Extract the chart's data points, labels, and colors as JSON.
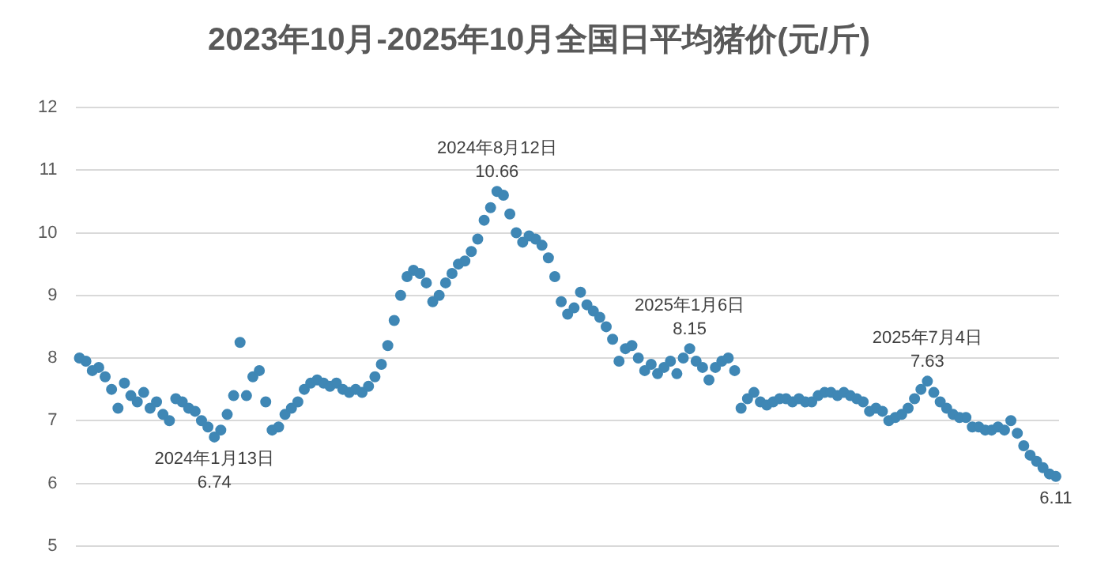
{
  "chart_data": {
    "type": "scatter",
    "title": "2023年10月-2025年10月全国日平均猪价(元/斤)",
    "categories": [
      null,
      null,
      null,
      null,
      null,
      null,
      null,
      null,
      null,
      null,
      null,
      null,
      null,
      null,
      null,
      null,
      null,
      null,
      null,
      null,
      null,
      null,
      null,
      null,
      null,
      null,
      null,
      null,
      null,
      null,
      null,
      null,
      null,
      null,
      null,
      null,
      null,
      null,
      null,
      null,
      null,
      null,
      null,
      null,
      null,
      null,
      null,
      null,
      null,
      null,
      null,
      null,
      null,
      null,
      null,
      null,
      null,
      null,
      null,
      null,
      null,
      null,
      null,
      null,
      null,
      null,
      null,
      null,
      null,
      null,
      null,
      null,
      null,
      null,
      null,
      null,
      null,
      null,
      null,
      null,
      null,
      null,
      null,
      null,
      null,
      null,
      null,
      null,
      null,
      null,
      null,
      null,
      null,
      null,
      null,
      null,
      null,
      null,
      null,
      null,
      null,
      null,
      null,
      null,
      null,
      null,
      null,
      null,
      null,
      null,
      null,
      null,
      null,
      null,
      null,
      null,
      null,
      null,
      null,
      null,
      null,
      null,
      null,
      null,
      null,
      null,
      null,
      null,
      null,
      null,
      null,
      null,
      null,
      null,
      null,
      null,
      null,
      null,
      null,
      null,
      null,
      null,
      null,
      null,
      null,
      null,
      null,
      null,
      null,
      null,
      null,
      null,
      null
    ],
    "values": [
      8.0,
      7.95,
      7.8,
      7.85,
      7.7,
      7.5,
      7.2,
      7.6,
      7.4,
      7.3,
      7.45,
      7.2,
      7.3,
      7.1,
      7.0,
      7.35,
      7.3,
      7.2,
      7.15,
      7.0,
      6.9,
      6.74,
      6.85,
      7.1,
      7.4,
      8.25,
      7.4,
      7.7,
      7.8,
      7.3,
      6.85,
      6.9,
      7.1,
      7.2,
      7.3,
      7.5,
      7.6,
      7.65,
      7.6,
      7.55,
      7.6,
      7.5,
      7.45,
      7.5,
      7.45,
      7.55,
      7.7,
      7.9,
      8.2,
      8.6,
      9.0,
      9.3,
      9.4,
      9.35,
      9.2,
      8.9,
      9.0,
      9.2,
      9.35,
      9.5,
      9.55,
      9.7,
      9.9,
      10.2,
      10.4,
      10.66,
      10.6,
      10.3,
      10.0,
      9.85,
      9.95,
      9.9,
      9.8,
      9.6,
      9.3,
      8.9,
      8.7,
      8.8,
      9.05,
      8.85,
      8.75,
      8.65,
      8.5,
      8.3,
      7.95,
      8.15,
      8.2,
      8.0,
      7.8,
      7.9,
      7.75,
      7.85,
      7.95,
      7.75,
      8.0,
      8.15,
      7.95,
      7.85,
      7.65,
      7.85,
      7.95,
      8.0,
      7.8,
      7.2,
      7.35,
      7.45,
      7.3,
      7.25,
      7.3,
      7.35,
      7.35,
      7.3,
      7.35,
      7.3,
      7.3,
      7.4,
      7.45,
      7.45,
      7.4,
      7.45,
      7.4,
      7.35,
      7.3,
      7.15,
      7.2,
      7.15,
      7.0,
      7.05,
      7.1,
      7.2,
      7.35,
      7.5,
      7.63,
      7.45,
      7.3,
      7.2,
      7.1,
      7.05,
      7.05,
      6.9,
      6.9,
      6.85,
      6.85,
      6.9,
      6.85,
      7.0,
      6.8,
      6.6,
      6.45,
      6.35,
      6.25,
      6.15,
      6.11
    ],
    "value_labels": [
      null,
      null,
      null,
      null,
      null,
      null,
      null,
      null,
      null,
      null,
      null,
      null,
      null,
      null,
      null,
      null,
      null,
      null,
      null,
      null,
      null,
      "6.74",
      null,
      null,
      null,
      null,
      null,
      null,
      null,
      null,
      null,
      null,
      null,
      null,
      null,
      null,
      null,
      null,
      null,
      null,
      null,
      null,
      null,
      null,
      null,
      null,
      null,
      null,
      null,
      null,
      null,
      null,
      null,
      null,
      null,
      null,
      null,
      null,
      null,
      null,
      null,
      null,
      null,
      null,
      null,
      "10.66",
      null,
      null,
      null,
      null,
      null,
      null,
      null,
      null,
      null,
      null,
      null,
      null,
      null,
      null,
      null,
      null,
      null,
      null,
      null,
      null,
      null,
      null,
      null,
      null,
      null,
      null,
      null,
      null,
      null,
      "8.15",
      null,
      null,
      null,
      null,
      null,
      null,
      null,
      null,
      null,
      null,
      null,
      null,
      null,
      null,
      null,
      null,
      null,
      null,
      null,
      null,
      null,
      null,
      null,
      null,
      null,
      null,
      null,
      null,
      null,
      null,
      null,
      null,
      null,
      null,
      null,
      null,
      "7.63",
      null,
      null,
      null,
      null,
      null,
      null,
      null,
      null,
      null,
      null,
      null,
      null,
      null,
      null,
      null,
      null,
      null,
      null,
      null,
      "6.11"
    ],
    "annotations": [
      {
        "text": "2024年1月13日",
        "y": 6.74
      },
      {
        "text": "2024年8月12日",
        "y": 10.66
      },
      {
        "text": "2025年1月6日",
        "y": 8.15
      },
      {
        "text": "2025年7月4日",
        "y": 7.63
      }
    ],
    "color": "#3f87b5",
    "marker": "circle",
    "ylim": [
      5,
      12
    ],
    "yticks": [
      5,
      6,
      7,
      8,
      9,
      10,
      11,
      12
    ],
    "grid": "y",
    "legend": false
  }
}
